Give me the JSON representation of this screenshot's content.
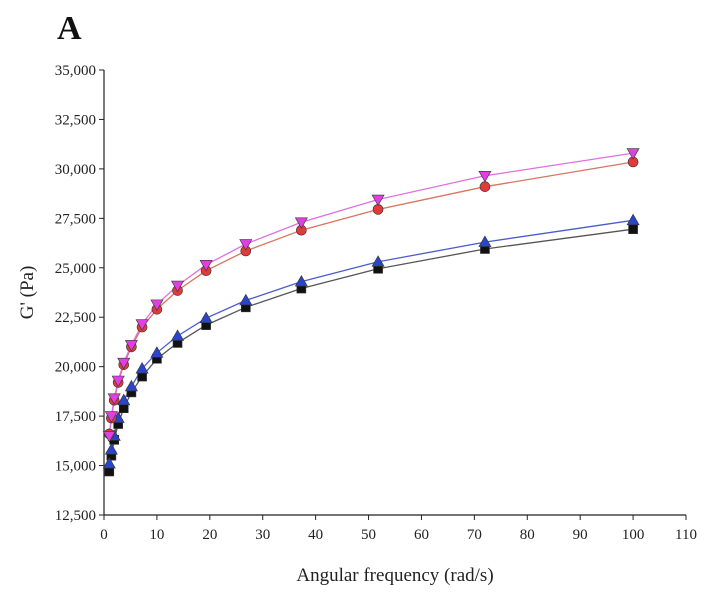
{
  "panel_label": "A",
  "chart_data": {
    "type": "scatter",
    "title": "",
    "xlabel": "Angular frequency (rad/s)",
    "ylabel": "G' (Pa)",
    "xlim": [
      0,
      110
    ],
    "ylim": [
      12500,
      35000
    ],
    "x_ticks": [
      0,
      10,
      20,
      30,
      40,
      50,
      60,
      70,
      80,
      90,
      100,
      110
    ],
    "x_tick_labels": [
      "0",
      "10",
      "20",
      "30",
      "40",
      "50",
      "60",
      "70",
      "80",
      "90",
      "100",
      "110"
    ],
    "y_ticks": [
      12500,
      15000,
      17500,
      20000,
      22500,
      25000,
      27500,
      30000,
      32500,
      35000
    ],
    "y_tick_labels": [
      "12,500",
      "15,000",
      "17,500",
      "20,000",
      "22,500",
      "25,000",
      "27,500",
      "30,000",
      "32,500",
      "35,000"
    ],
    "grid": false,
    "legend": "none",
    "x": [
      1,
      1.39,
      1.93,
      2.68,
      3.73,
      5.18,
      7.2,
      10,
      13.9,
      19.3,
      26.8,
      37.3,
      51.8,
      72,
      100
    ],
    "series": [
      {
        "marker": "inverted-triangle",
        "color": "#e040e0",
        "line_color": "#e070e0",
        "values": [
          16500,
          17500,
          18400,
          19300,
          20200,
          21100,
          22150,
          23150,
          24100,
          25150,
          26200,
          27300,
          28450,
          29650,
          30800
        ]
      },
      {
        "marker": "circle",
        "color": "#e03a3a",
        "line_color": "#d9745e",
        "values": [
          16600,
          17400,
          18300,
          19200,
          20100,
          21000,
          22000,
          22900,
          23850,
          24850,
          25850,
          26900,
          27950,
          29100,
          30350
        ]
      },
      {
        "marker": "triangle",
        "color": "#2a45c8",
        "line_color": "#4a5bd0",
        "values": [
          15100,
          15800,
          16500,
          17400,
          18300,
          19000,
          19900,
          20700,
          21550,
          22450,
          23350,
          24300,
          25300,
          26300,
          27400
        ]
      },
      {
        "marker": "square",
        "color": "#111111",
        "line_color": "#555555",
        "values": [
          14700,
          15500,
          16300,
          17100,
          17900,
          18700,
          19500,
          20400,
          21200,
          22100,
          23000,
          23950,
          24950,
          25950,
          26950
        ]
      }
    ]
  }
}
